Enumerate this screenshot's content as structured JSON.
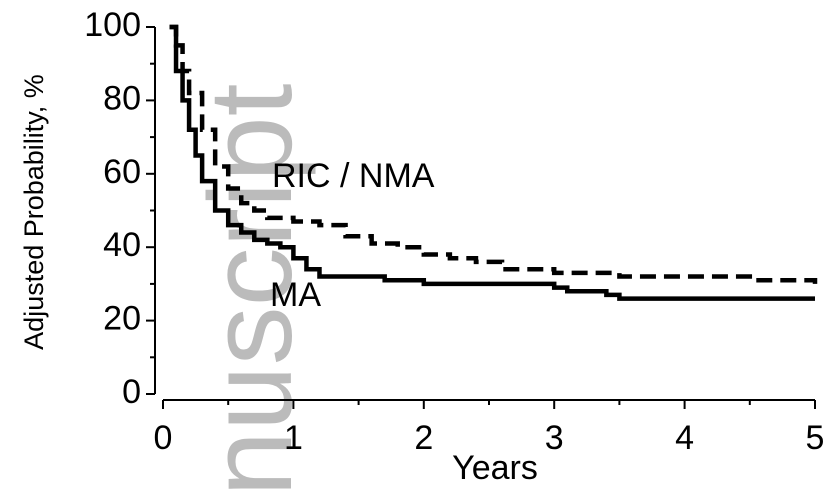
{
  "watermark": "nuscript",
  "chart_data": {
    "type": "line",
    "stepped": true,
    "xlabel": "Years",
    "ylabel": "Adjusted Probability, %",
    "xlim": [
      0,
      5
    ],
    "xticks": [
      0,
      1,
      2,
      3,
      4,
      5
    ],
    "ylim": [
      0,
      100
    ],
    "yticks": [
      0,
      20,
      40,
      60,
      80,
      100
    ],
    "annotations": [
      "RIC / NMA",
      "MA"
    ],
    "series": [
      {
        "name": "RIC / NMA",
        "color": "#000000",
        "style": "dashed",
        "x": [
          0.05,
          0.1,
          0.15,
          0.2,
          0.3,
          0.4,
          0.5,
          0.6,
          0.7,
          0.8,
          1.0,
          1.2,
          1.4,
          1.6,
          1.8,
          2.0,
          2.2,
          2.4,
          2.6,
          2.8,
          3.0,
          3.2,
          3.5,
          4.0,
          4.5,
          5.0
        ],
        "values": [
          100,
          95,
          88,
          82,
          72,
          62,
          56,
          52,
          50,
          48,
          47,
          46,
          43,
          41,
          40,
          38,
          37,
          36,
          34,
          34,
          33,
          33,
          32,
          32,
          31,
          30
        ]
      },
      {
        "name": "MA",
        "color": "#000000",
        "style": "solid",
        "x": [
          0.05,
          0.1,
          0.15,
          0.2,
          0.25,
          0.3,
          0.4,
          0.5,
          0.6,
          0.7,
          0.8,
          0.9,
          1.0,
          1.1,
          1.2,
          1.5,
          1.7,
          2.0,
          2.5,
          3.0,
          3.1,
          3.4,
          3.5,
          4.0,
          5.0
        ],
        "values": [
          100,
          88,
          80,
          72,
          65,
          58,
          50,
          46,
          44,
          42,
          41,
          40,
          37,
          34,
          32,
          32,
          31,
          30,
          30,
          29,
          28,
          27,
          26,
          26,
          26
        ]
      }
    ]
  }
}
